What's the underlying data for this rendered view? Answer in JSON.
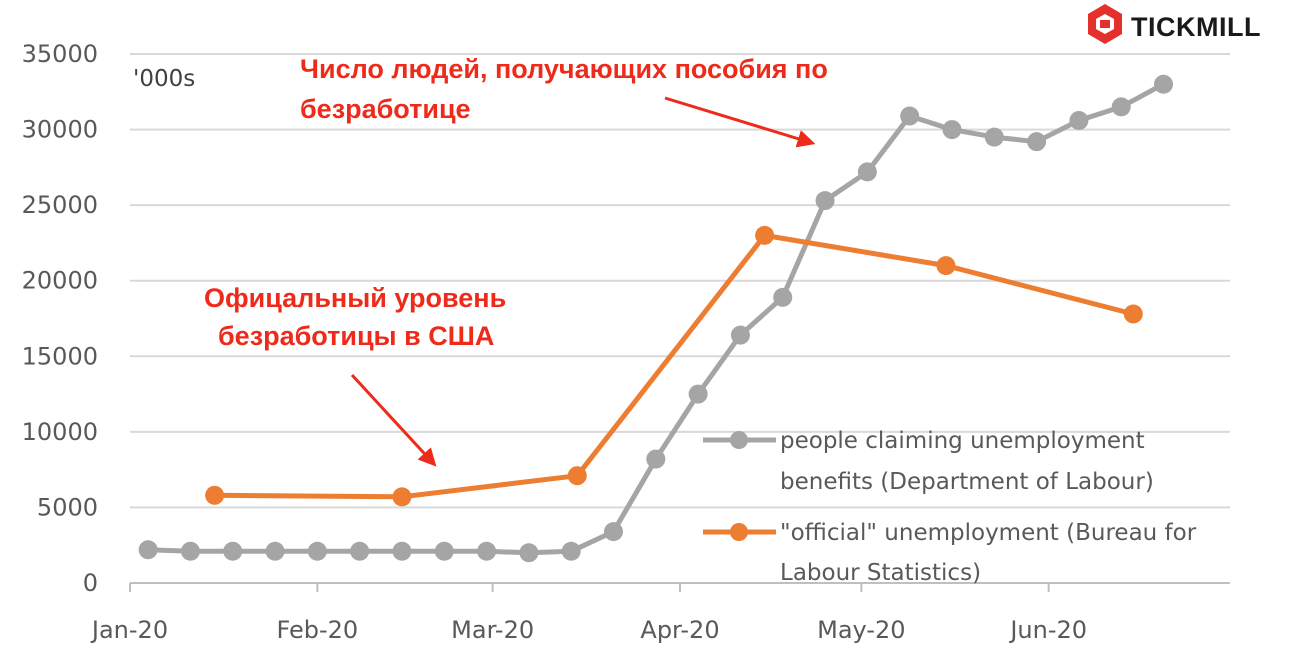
{
  "brand": {
    "name": "TICKMILL",
    "icon": "tickmill-hexagon-logo",
    "color": "#e5312b"
  },
  "chart_data": {
    "type": "line",
    "unit_label": "'000s",
    "ylim": [
      0,
      35000
    ],
    "yticks": [
      "0",
      "5000",
      "10000",
      "15000",
      "20000",
      "25000",
      "30000",
      "35000"
    ],
    "xlim": [
      "2020-01-01",
      "2020-07-01"
    ],
    "xticks": [
      {
        "label": "Jan-20",
        "date": "2020-01-01"
      },
      {
        "label": "Feb-20",
        "date": "2020-02-01"
      },
      {
        "label": "Mar-20",
        "date": "2020-03-01"
      },
      {
        "label": "Apr-20",
        "date": "2020-04-01"
      },
      {
        "label": "May-20",
        "date": "2020-05-01"
      },
      {
        "label": "Jun-20",
        "date": "2020-06-01"
      }
    ],
    "grid": "horizontal",
    "series": [
      {
        "name": "people claiming unemployment benefits (Department of Labour)",
        "color": "#a5a5a5",
        "points": [
          {
            "x": "2020-01-04",
            "y": 2200
          },
          {
            "x": "2020-01-11",
            "y": 2100
          },
          {
            "x": "2020-01-18",
            "y": 2100
          },
          {
            "x": "2020-01-25",
            "y": 2100
          },
          {
            "x": "2020-02-01",
            "y": 2100
          },
          {
            "x": "2020-02-08",
            "y": 2100
          },
          {
            "x": "2020-02-15",
            "y": 2100
          },
          {
            "x": "2020-02-22",
            "y": 2100
          },
          {
            "x": "2020-02-29",
            "y": 2100
          },
          {
            "x": "2020-03-07",
            "y": 2000
          },
          {
            "x": "2020-03-14",
            "y": 2100
          },
          {
            "x": "2020-03-21",
            "y": 3400
          },
          {
            "x": "2020-03-28",
            "y": 8200
          },
          {
            "x": "2020-04-04",
            "y": 12500
          },
          {
            "x": "2020-04-11",
            "y": 16400
          },
          {
            "x": "2020-04-18",
            "y": 18900
          },
          {
            "x": "2020-04-25",
            "y": 25300
          },
          {
            "x": "2020-05-02",
            "y": 27200
          },
          {
            "x": "2020-05-09",
            "y": 30900
          },
          {
            "x": "2020-05-16",
            "y": 30000
          },
          {
            "x": "2020-05-23",
            "y": 29500
          },
          {
            "x": "2020-05-30",
            "y": 29200
          },
          {
            "x": "2020-06-06",
            "y": 30600
          },
          {
            "x": "2020-06-13",
            "y": 31500
          },
          {
            "x": "2020-06-20",
            "y": 33000
          }
        ]
      },
      {
        "name": "\"official\" unemployment (Bureau for Labour Statistics)",
        "color": "#ed7d31",
        "points": [
          {
            "x": "2020-01-15",
            "y": 5800
          },
          {
            "x": "2020-02-15",
            "y": 5700
          },
          {
            "x": "2020-03-15",
            "y": 7100
          },
          {
            "x": "2020-04-15",
            "y": 23000
          },
          {
            "x": "2020-05-15",
            "y": 21000
          },
          {
            "x": "2020-06-15",
            "y": 17800
          }
        ]
      }
    ],
    "legend": {
      "position": "lower-right",
      "items": [
        {
          "lines": [
            "people claiming unemployment",
            "benefits (Department of Labour)"
          ],
          "color": "#a5a5a5"
        },
        {
          "lines": [
            "\"official\" unemployment (Bureau for",
            "Labour Statistics)"
          ],
          "color": "#ed7d31"
        }
      ]
    },
    "annotations": [
      {
        "lines": [
          "Число людей, получающих пособия по",
          "безработице"
        ],
        "color": "#ee2a1b",
        "points_to": "people claiming unemployment benefits (Department of Labour)"
      },
      {
        "lines": [
          "Офицальный уровень",
          "безработицы в США"
        ],
        "color": "#ee2a1b",
        "points_to": "\"official\" unemployment (Bureau for Labour Statistics)"
      }
    ]
  }
}
